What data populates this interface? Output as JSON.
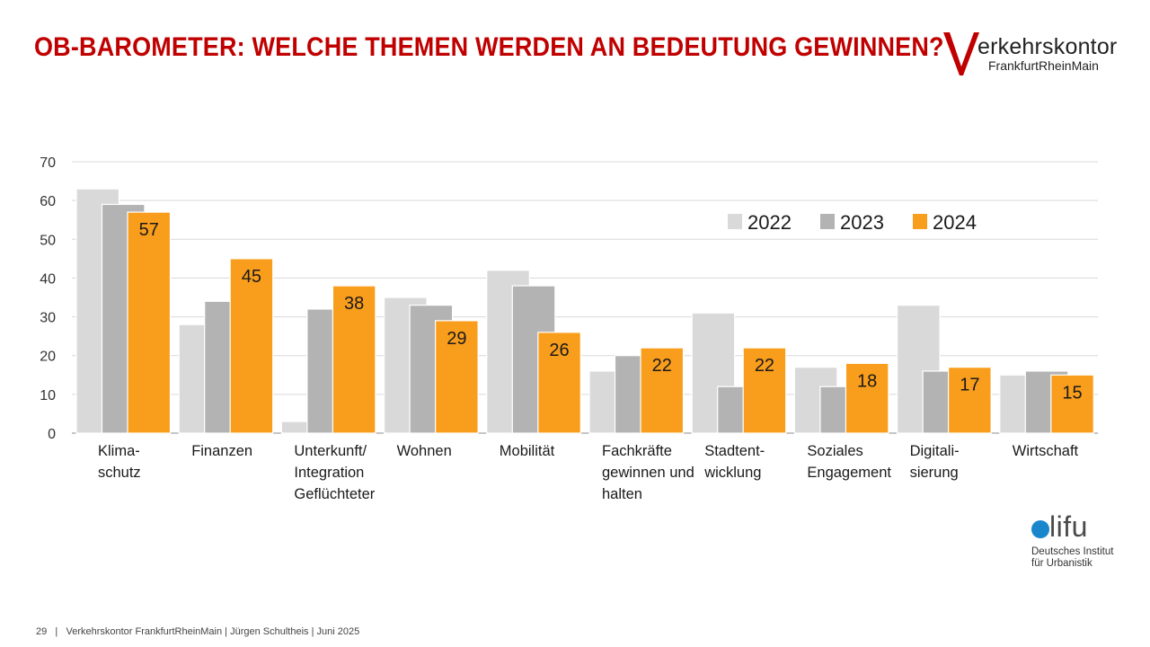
{
  "title": "OB-BAROMETER: WELCHE THEMEN WERDEN AN BEDEUTUNG GEWINNEN?",
  "logo": {
    "letter": "V",
    "word": "erkehrskontor",
    "sub": "FrankfurtRheinMain"
  },
  "difu": {
    "word": "lifu",
    "line1": "Deutsches Institut",
    "line2": "für Urbanistik",
    "dot_color": "#1a87cc"
  },
  "footer": {
    "page": "29",
    "text": "Verkehrskontor FrankfurtRheinMain | Jürgen Schultheis | Juni 2025"
  },
  "chart_data": {
    "type": "bar",
    "categories": [
      [
        "Klima-",
        "schutz"
      ],
      [
        "Finanzen"
      ],
      [
        "Unterkunft/",
        "Integration",
        "Geflüchteter"
      ],
      [
        "Wohnen"
      ],
      [
        "Mobilität"
      ],
      [
        "Fachkräfte",
        "gewinnen und",
        "halten"
      ],
      [
        "Stadtent-",
        "wicklung"
      ],
      [
        "Soziales",
        "Engagement"
      ],
      [
        "Digitali-",
        "sierung"
      ],
      [
        "Wirtschaft"
      ]
    ],
    "series": [
      {
        "name": "2022",
        "color": "#d9d9d9",
        "values": [
          63,
          28,
          3,
          35,
          42,
          16,
          31,
          17,
          33,
          15
        ]
      },
      {
        "name": "2023",
        "color": "#b3b3b3",
        "values": [
          59,
          34,
          32,
          33,
          38,
          20,
          12,
          12,
          16,
          16
        ]
      },
      {
        "name": "2024",
        "color": "#f99d1c",
        "values": [
          57,
          45,
          38,
          29,
          26,
          22,
          22,
          18,
          17,
          15
        ]
      }
    ],
    "labeled_series": "2024",
    "yticks": [
      0,
      10,
      20,
      30,
      40,
      50,
      60,
      70
    ],
    "ylim": [
      0,
      70
    ],
    "grid": true,
    "legend": "top-right"
  }
}
